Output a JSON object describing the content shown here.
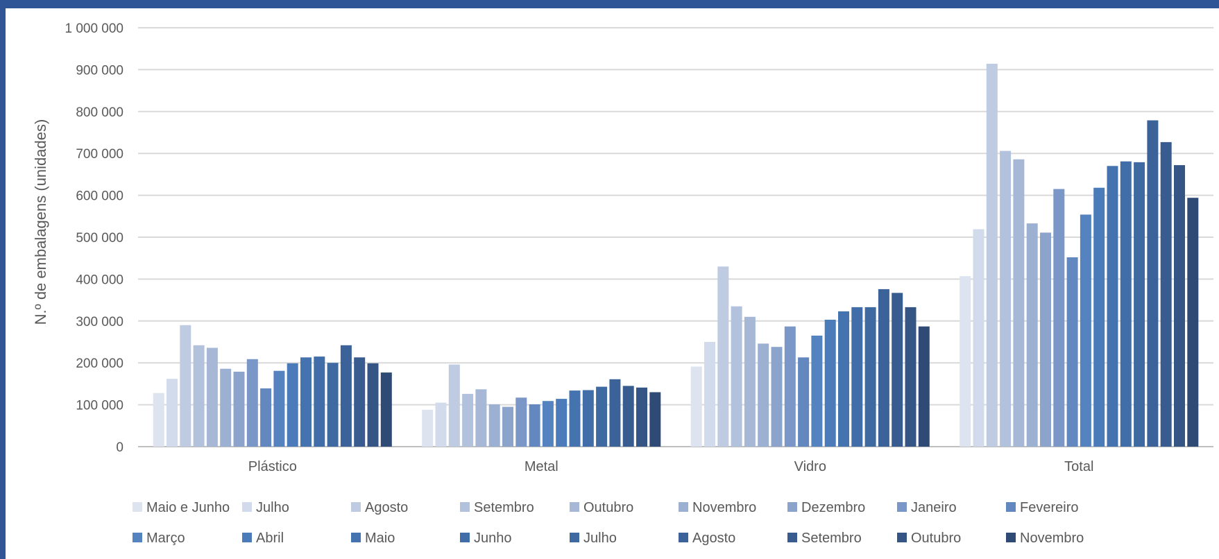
{
  "chart_data": {
    "type": "bar",
    "ylabel": "N.º de embalagens (unidades)",
    "ylim": [
      0,
      1000000
    ],
    "yticks": [
      "0",
      "100 000",
      "200 000",
      "300 000",
      "400 000",
      "500 000",
      "600 000",
      "700 000",
      "800 000",
      "900 000",
      "1 000 000"
    ],
    "grid": true,
    "legend_position": "bottom",
    "categories": [
      "Plástico",
      "Metal",
      "Vidro",
      "Total"
    ],
    "series": [
      {
        "name": "Maio e Junho",
        "color": "#dde3ef",
        "values": [
          128000,
          88000,
          191000,
          407000
        ]
      },
      {
        "name": "Julho",
        "color": "#d2dbeb",
        "values": [
          162000,
          105000,
          250000,
          519000
        ]
      },
      {
        "name": "Agosto",
        "color": "#bfcbe1",
        "values": [
          290000,
          196000,
          430000,
          914000
        ]
      },
      {
        "name": "Setembro",
        "color": "#b2c1dc",
        "values": [
          242000,
          126000,
          335000,
          706000
        ]
      },
      {
        "name": "Outubro",
        "color": "#a7b8d6",
        "values": [
          236000,
          137000,
          310000,
          686000
        ]
      },
      {
        "name": "Novembro",
        "color": "#9cb0d2",
        "values": [
          186000,
          101000,
          246000,
          533000
        ]
      },
      {
        "name": "Dezembro",
        "color": "#8ca4cc",
        "values": [
          179000,
          95000,
          238000,
          511000
        ]
      },
      {
        "name": "Janeiro",
        "color": "#7b97c7",
        "values": [
          209000,
          117000,
          287000,
          615000
        ]
      },
      {
        "name": "Fevereiro",
        "color": "#6388c0",
        "values": [
          139000,
          101000,
          213000,
          452000
        ]
      },
      {
        "name": "Março",
        "color": "#5583bf",
        "values": [
          181000,
          109000,
          265000,
          554000
        ]
      },
      {
        "name": "Abril",
        "color": "#4b7bb9",
        "values": [
          199000,
          114000,
          303000,
          618000
        ]
      },
      {
        "name": "Maio",
        "color": "#4473b0",
        "values": [
          213000,
          134000,
          323000,
          670000
        ]
      },
      {
        "name": "Junho",
        "color": "#416ea8",
        "values": [
          215000,
          135000,
          333000,
          681000
        ]
      },
      {
        "name": "Julho",
        "color": "#3f6aa1",
        "values": [
          200000,
          143000,
          333000,
          679000
        ]
      },
      {
        "name": "Agosto",
        "color": "#3c6399",
        "values": [
          242000,
          161000,
          376000,
          779000
        ]
      },
      {
        "name": "Setembro",
        "color": "#385c8f",
        "values": [
          213000,
          145000,
          367000,
          727000
        ]
      },
      {
        "name": "Outubro",
        "color": "#355585",
        "values": [
          199000,
          141000,
          333000,
          672000
        ]
      },
      {
        "name": "Novembro",
        "color": "#2f4a75",
        "values": [
          177000,
          130000,
          287000,
          594000
        ]
      }
    ]
  }
}
